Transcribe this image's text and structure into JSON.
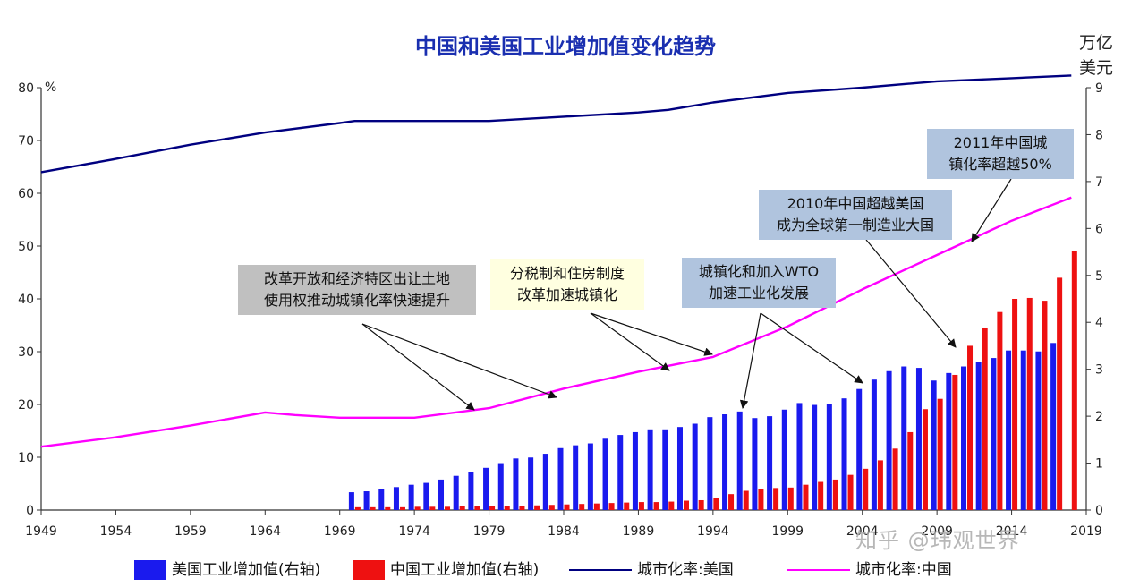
{
  "chart_data": {
    "type": "bar",
    "title": "中国和美国工业增加值变化趋势",
    "y_left_unit": "%",
    "y_right_unit_line1": "万亿",
    "y_right_unit_line2": "美元",
    "ylim_left": [
      0,
      80
    ],
    "ylim_right": [
      0,
      9
    ],
    "xlim": [
      1949,
      2019
    ],
    "x_ticks": [
      "1949",
      "1954",
      "1959",
      "1964",
      "1969",
      "1974",
      "1979",
      "1984",
      "1989",
      "1994",
      "1999",
      "2004",
      "2009",
      "2014",
      "2019"
    ],
    "y_left_ticks": [
      "0",
      "10",
      "20",
      "30",
      "40",
      "50",
      "60",
      "70",
      "80"
    ],
    "y_right_ticks": [
      "0",
      "1",
      "2",
      "3",
      "4",
      "5",
      "6",
      "7",
      "8",
      "9"
    ],
    "bar_years": [
      1970,
      1971,
      1972,
      1973,
      1974,
      1975,
      1976,
      1977,
      1978,
      1979,
      1980,
      1981,
      1982,
      1983,
      1984,
      1985,
      1986,
      1987,
      1988,
      1989,
      1990,
      1991,
      1992,
      1993,
      1994,
      1995,
      1996,
      1997,
      1998,
      1999,
      2000,
      2001,
      2002,
      2003,
      2004,
      2005,
      2006,
      2007,
      2008,
      2009,
      2010,
      2011,
      2012,
      2013,
      2014,
      2015,
      2016,
      2017,
      2018
    ],
    "series": [
      {
        "name": "美国工业增加值(右轴)",
        "kind": "bar",
        "axis": "right",
        "color": "#1a1aee",
        "values": [
          0.38,
          0.4,
          0.44,
          0.49,
          0.54,
          0.58,
          0.65,
          0.73,
          0.82,
          0.9,
          1.0,
          1.1,
          1.12,
          1.2,
          1.32,
          1.38,
          1.42,
          1.52,
          1.6,
          1.66,
          1.72,
          1.72,
          1.77,
          1.84,
          1.98,
          2.04,
          2.1,
          1.96,
          2.0,
          2.14,
          2.28,
          2.24,
          2.26,
          2.38,
          2.58,
          2.78,
          2.96,
          3.06,
          3.03,
          2.76,
          2.92,
          3.06,
          3.16,
          3.24,
          3.4,
          3.4,
          3.38,
          3.56,
          null
        ]
      },
      {
        "name": "中国工业增加值(右轴)",
        "kind": "bar",
        "axis": "right",
        "color": "#ee1111",
        "values": [
          0.06,
          0.06,
          0.06,
          0.06,
          0.07,
          0.07,
          0.07,
          0.08,
          0.08,
          0.09,
          0.09,
          0.09,
          0.1,
          0.11,
          0.12,
          0.13,
          0.14,
          0.15,
          0.16,
          0.17,
          0.17,
          0.18,
          0.2,
          0.21,
          0.26,
          0.34,
          0.41,
          0.45,
          0.47,
          0.48,
          0.54,
          0.6,
          0.65,
          0.75,
          0.88,
          1.06,
          1.31,
          1.66,
          2.15,
          2.37,
          2.88,
          3.5,
          3.89,
          4.22,
          4.5,
          4.52,
          4.46,
          4.95,
          5.52
        ]
      },
      {
        "name": "城市化率:美国",
        "kind": "line",
        "axis": "left",
        "color": "#000080",
        "x": [
          1949,
          1954,
          1959,
          1964,
          1969,
          1970,
          1974,
          1979,
          1984,
          1989,
          1991,
          1994,
          1999,
          2004,
          2009,
          2014,
          2018
        ],
        "values": [
          64,
          66.5,
          69.2,
          71.5,
          73.3,
          73.7,
          73.7,
          73.7,
          74.5,
          75.3,
          75.8,
          77.2,
          79.0,
          80,
          81.2,
          81.8,
          82.3
        ]
      },
      {
        "name": "城市化率:中国",
        "kind": "line",
        "axis": "left",
        "color": "#ff00ff",
        "x": [
          1949,
          1954,
          1959,
          1964,
          1966,
          1969,
          1974,
          1979,
          1984,
          1989,
          1994,
          1999,
          2004,
          2009,
          2014,
          2018
        ],
        "values": [
          12,
          13.8,
          16,
          18.5,
          18,
          17.5,
          17.5,
          19.3,
          23,
          26.2,
          29,
          34.8,
          41.8,
          48.3,
          54.8,
          59.2
        ]
      }
    ],
    "annotations": [
      {
        "id": "reform",
        "line1": "改革开放和经济特区出让土地",
        "line2": "使用权推动城镇化率快速提升",
        "bg": "#c0c0c0"
      },
      {
        "id": "tax",
        "line1": "分税制和住房制度",
        "line2": "改革加速城镇化",
        "bg": "#ffffe0"
      },
      {
        "id": "wto",
        "line1": "城镇化和加入WTO",
        "line2": "加速工业化发展",
        "bg": "#b0c4de"
      },
      {
        "id": "y2010",
        "line1": "2010年中国超越美国",
        "line2": "成为全球第一制造业大国",
        "bg": "#b0c4de"
      },
      {
        "id": "y2011",
        "line1": "2011年中国城",
        "line2": "镇化率超越50%",
        "bg": "#b0c4de"
      }
    ],
    "legend": {
      "position": "bottom"
    }
  },
  "watermark": "知乎 @玮观世界"
}
